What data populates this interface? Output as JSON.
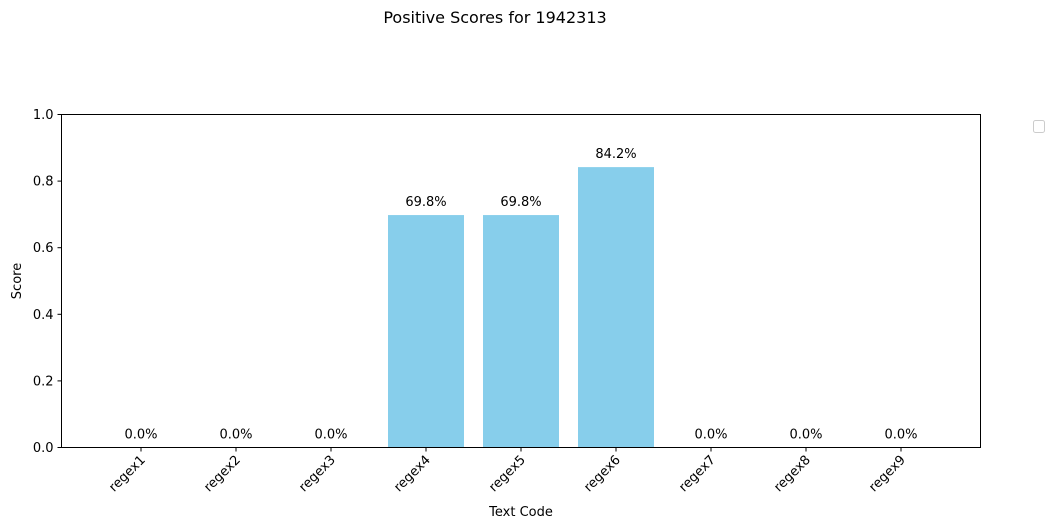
{
  "chart_data": {
    "type": "bar",
    "title": "Positive Scores for 1942313",
    "xlabel": "Text Code",
    "ylabel": "Score",
    "categories": [
      "regex1",
      "regex2",
      "regex3",
      "regex4",
      "regex5",
      "regex6",
      "regex7",
      "regex8",
      "regex9"
    ],
    "values": [
      0.0,
      0.0,
      0.0,
      0.698,
      0.698,
      0.842,
      0.0,
      0.0,
      0.0
    ],
    "data_labels": [
      "0.0%",
      "0.0%",
      "0.0%",
      "69.8%",
      "69.8%",
      "84.2%",
      "0.0%",
      "0.0%",
      "0.0%"
    ],
    "ylim": [
      0,
      1.0
    ],
    "yticks": [
      "0.0",
      "0.2",
      "0.4",
      "0.6",
      "0.8",
      "1.0"
    ],
    "bar_color": "#87CEEB",
    "grid": false,
    "legend": "outside-top-right (empty)"
  }
}
